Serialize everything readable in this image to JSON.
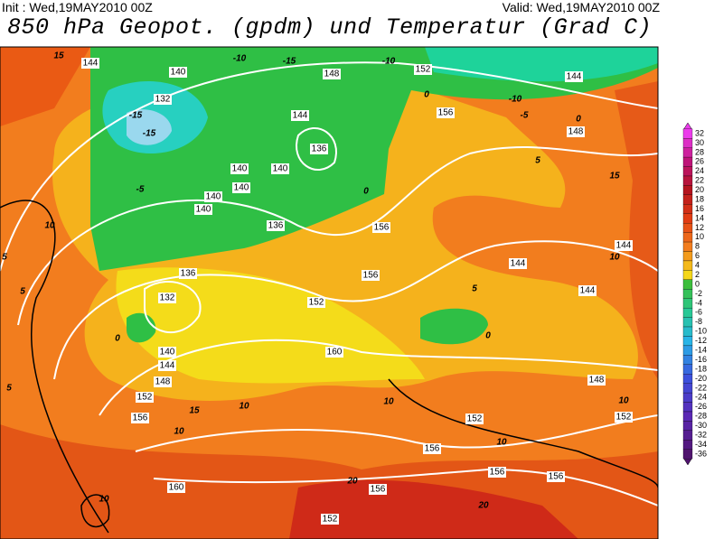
{
  "header": {
    "init": "Init : Wed,19MAY2010 00Z",
    "valid": "Valid: Wed,19MAY2010 00Z",
    "title": "850 hPa Geopot. (gpdm) und Temperatur (Grad C)"
  },
  "colorbar": {
    "labels": [
      32,
      30,
      28,
      26,
      24,
      22,
      20,
      18,
      16,
      14,
      12,
      10,
      8,
      6,
      4,
      2,
      0,
      -2,
      -4,
      -6,
      -8,
      -10,
      -12,
      -14,
      -16,
      -18,
      -20,
      -22,
      -24,
      -26,
      -28,
      -30,
      -32,
      -34,
      -36
    ]
  },
  "geopotential_labels": [
    144,
    140,
    132,
    148,
    152,
    144,
    156,
    148,
    140,
    140,
    136,
    144,
    140,
    140,
    140,
    136,
    136,
    132,
    156,
    156,
    152,
    160,
    140,
    144,
    148,
    152,
    156,
    156,
    152,
    152,
    156,
    156,
    160,
    156,
    152,
    144,
    144,
    144,
    148
  ],
  "temperature_labels": [
    15,
    -10,
    -15,
    -10,
    0,
    -10,
    -5,
    0,
    -15,
    -15,
    -5,
    10,
    5,
    5,
    0,
    5,
    10,
    10,
    15,
    10,
    10,
    10,
    10,
    20,
    20,
    15,
    10,
    5,
    0,
    0,
    5
  ]
}
